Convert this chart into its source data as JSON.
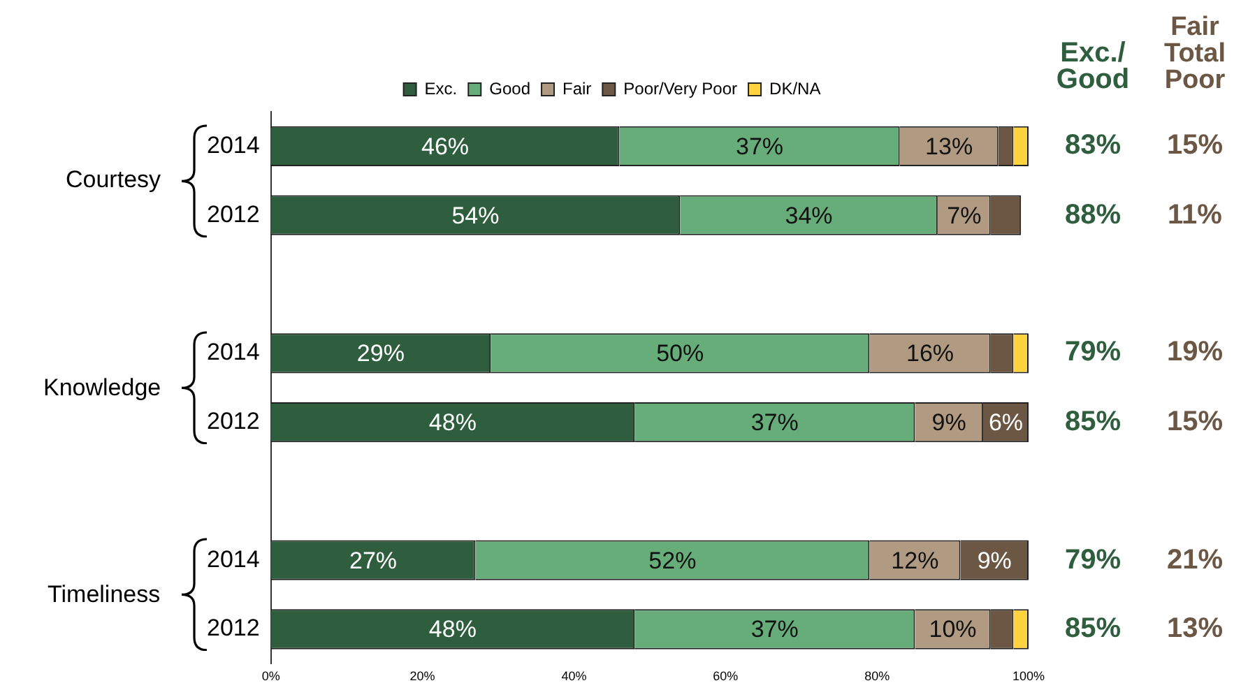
{
  "chart_data": {
    "type": "bar",
    "orientation": "horizontal",
    "stacked": true,
    "categories": [
      "2014",
      "2012",
      null,
      "2014",
      "2012",
      null,
      "2014",
      "2012"
    ],
    "series": [
      {
        "name": "Exc.",
        "color": "#2e5e3e",
        "values": [
          46,
          54,
          null,
          29,
          48,
          null,
          27,
          48
        ],
        "value_labels": [
          "46%",
          "54%",
          null,
          "29%",
          "48%",
          null,
          "27%",
          "48%"
        ]
      },
      {
        "name": "Good",
        "color": "#66ad7a",
        "values": [
          37,
          34,
          null,
          50,
          37,
          null,
          52,
          37
        ],
        "value_labels": [
          "37%",
          "34%",
          null,
          "50%",
          "37%",
          null,
          "52%",
          "37%"
        ]
      },
      {
        "name": "Fair",
        "color": "#b09a82",
        "values": [
          13,
          7,
          null,
          16,
          9,
          null,
          12,
          10
        ],
        "value_labels": [
          "13%",
          "7%",
          null,
          "16%",
          "9%",
          null,
          "12%",
          "10%"
        ]
      },
      {
        "name": "Poor/Very Poor",
        "color": "#6b5744",
        "values": [
          2,
          4,
          null,
          3,
          6,
          null,
          9,
          3
        ],
        "value_labels": [
          null,
          null,
          null,
          null,
          "6%",
          null,
          "9%",
          null
        ]
      },
      {
        "name": "DK/NA",
        "color": "#ffd23f",
        "values": [
          2,
          null,
          null,
          2,
          null,
          null,
          null,
          2
        ]
      }
    ],
    "xlim": [
      0,
      100
    ],
    "xticks": [
      {
        "value": 0,
        "label": "0%"
      },
      {
        "value": 20,
        "label": "20%"
      },
      {
        "value": 40,
        "label": "40%"
      },
      {
        "value": 60,
        "label": "60%"
      },
      {
        "value": 80,
        "label": "80%"
      },
      {
        "value": 100,
        "label": "100%"
      }
    ],
    "legend": "top",
    "grid": false,
    "annotations": [
      "Courtesy",
      "Knowledge",
      "Timeliness",
      "Exc./ Good",
      "Fair Total Poor",
      "83%",
      "15%",
      "88%",
      "11%",
      "79%",
      "19%",
      "85%",
      "15%",
      "79%",
      "21%",
      "85%",
      "13%"
    ]
  }
}
